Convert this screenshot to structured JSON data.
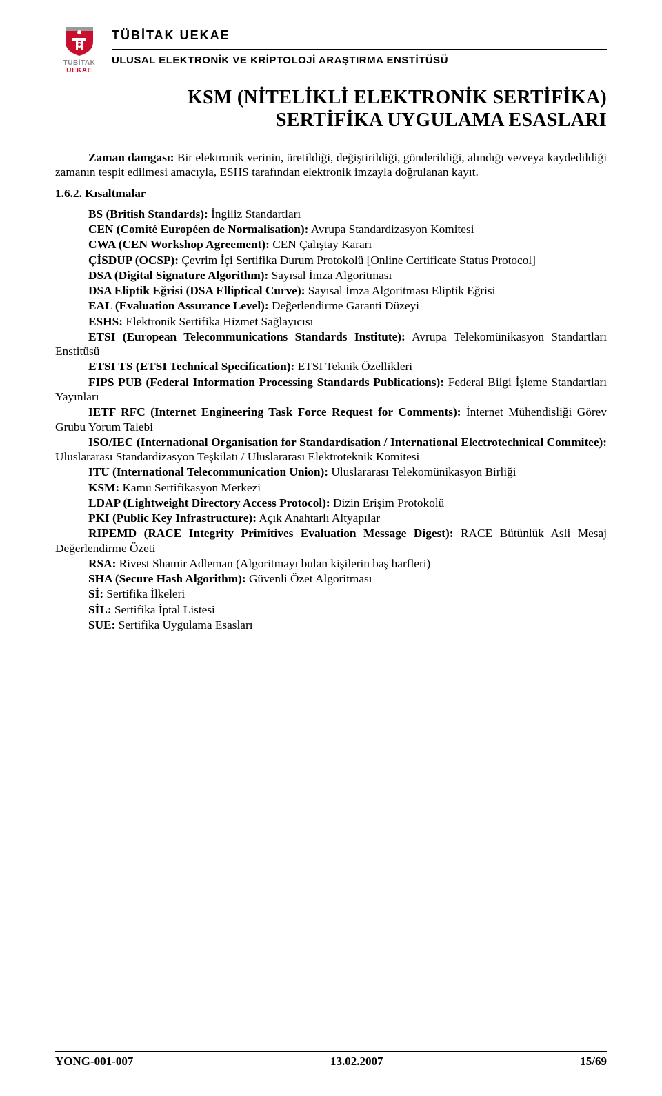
{
  "header": {
    "logo": {
      "word1": "TÜBİTAK",
      "word2": "UEKAE",
      "shield_red": "#c8102e",
      "shield_gray": "#9a9a9a",
      "shield_white": "#ffffff"
    },
    "org_name": "TÜBİTAK UEKAE",
    "org_sub": "ULUSAL ELEKTRONİK VE KRİPTOLOJİ ARAŞTIRMA ENSTİTÜSÜ"
  },
  "title": {
    "line1": "KSM (NİTELİKLİ ELEKTRONİK SERTİFİKA)",
    "line2": "SERTİFİKA UYGULAMA ESASLARI"
  },
  "intro": {
    "bold": "Zaman damgası:",
    "text": " Bir elektronik verinin, üretildiği, değiştirildiği, gönderildiği, alındığı ve/veya kaydedildiği zamanın tespit edilmesi amacıyla, ESHS tarafından elektronik imzayla doğrulanan kayıt."
  },
  "section_heading": "1.6.2.   Kısaltmalar",
  "entries": [
    {
      "bold": "BS (British Standards):",
      "text": " İngiliz Standartları"
    },
    {
      "bold": "CEN (Comité Européen de Normalisation):",
      "text": " Avrupa Standardizasyon Komitesi"
    },
    {
      "bold": "CWA (CEN Workshop Agreement):",
      "text": " CEN Çalıştay Kararı"
    },
    {
      "bold": "ÇİSDUP (OCSP):",
      "text": " Çevrim İçi Sertifika Durum Protokolü [Online Certificate Status Protocol]"
    },
    {
      "bold": "DSA (Digital Signature Algorithm):",
      "text": " Sayısal İmza Algoritması"
    },
    {
      "bold": "DSA Eliptik Eğrisi (DSA Elliptical Curve):",
      "text": " Sayısal İmza Algoritması Eliptik Eğrisi"
    },
    {
      "bold": "EAL (Evaluation Assurance Level):",
      "text": " Değerlendirme Garanti Düzeyi"
    },
    {
      "bold": "ESHS:",
      "text": " Elektronik Sertifika Hizmet Sağlayıcısı"
    },
    {
      "bold": "ETSI (European Telecommunications Standards Institute):",
      "text": " Avrupa Telekomünikasyon Standartları Enstitüsü"
    },
    {
      "bold": "ETSI TS (ETSI Technical Specification):",
      "text": " ETSI Teknik Özellikleri"
    },
    {
      "bold": "FIPS PUB (Federal Information Processing Standards Publications):",
      "text": " Federal Bilgi İşleme Standartları Yayınları"
    },
    {
      "bold": "IETF RFC (Internet Engineering Task Force Request for Comments):",
      "text": " İnternet Mühendisliği Görev Grubu Yorum Talebi"
    },
    {
      "bold": "ISO/IEC (International Organisation for Standardisation / International Electrotechnical Commitee):",
      "text": " Uluslararası Standardizasyon Teşkilatı / Uluslararası Elektroteknik Komitesi"
    },
    {
      "bold": "ITU (International Telecommunication Union):",
      "text": " Uluslararası Telekomünikasyon Birliği"
    },
    {
      "bold": "KSM:",
      "text": " Kamu Sertifikasyon Merkezi"
    },
    {
      "bold": "LDAP (Lightweight Directory Access Protocol):",
      "text": " Dizin Erişim Protokolü"
    },
    {
      "bold": "PKI (Public Key Infrastructure):",
      "text": " Açık Anahtarlı Altyapılar"
    },
    {
      "bold": "RIPEMD (RACE Integrity Primitives Evaluation Message Digest):",
      "text": " RACE Bütünlük Asli Mesaj Değerlendirme Özeti"
    },
    {
      "bold": "RSA:",
      "text": " Rivest Shamir Adleman (Algoritmayı bulan kişilerin baş harfleri)"
    },
    {
      "bold": "SHA (Secure Hash Algorithm):",
      "text": " Güvenli Özet Algoritması"
    },
    {
      "bold": "Sİ:",
      "text": " Sertifika İlkeleri"
    },
    {
      "bold": "SİL:",
      "text": " Sertifika İptal Listesi"
    },
    {
      "bold": "SUE:",
      "text": " Sertifika Uygulama Esasları"
    }
  ],
  "footer": {
    "left": "YONG-001-007",
    "center": "13.02.2007",
    "right": "15/69"
  }
}
